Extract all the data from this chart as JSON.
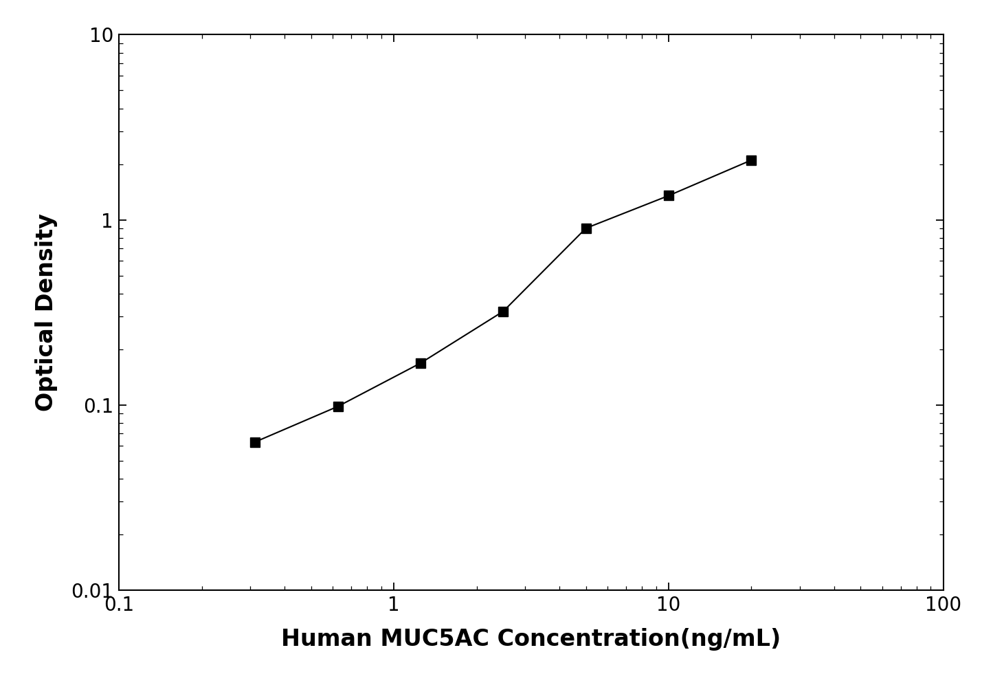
{
  "x": [
    0.3125,
    0.625,
    1.25,
    2.5,
    5.0,
    10.0,
    20.0
  ],
  "y": [
    0.063,
    0.098,
    0.168,
    0.32,
    0.9,
    1.35,
    2.1
  ],
  "xlabel": "Human MUC5AC Concentration(ng/mL)",
  "ylabel": "Optical Density",
  "xlim": [
    0.1,
    100
  ],
  "ylim": [
    0.01,
    10
  ],
  "line_color": "#000000",
  "marker": "s",
  "marker_color": "#000000",
  "marker_size": 10,
  "line_width": 1.5,
  "xlabel_fontsize": 24,
  "ylabel_fontsize": 24,
  "tick_fontsize": 20,
  "background_color": "#ffffff",
  "xlabel_fontweight": "bold",
  "ylabel_fontweight": "bold"
}
